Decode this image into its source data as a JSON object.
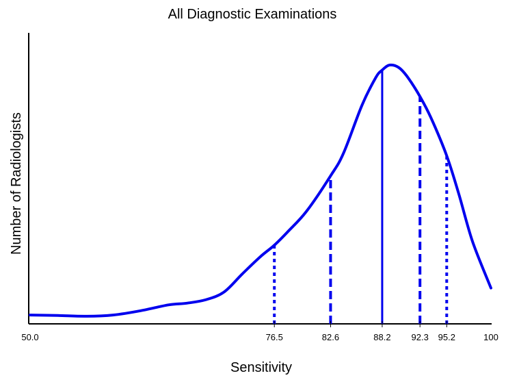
{
  "chart_data": {
    "type": "line",
    "title": "All Diagnostic Examinations",
    "xlabel": "Sensitivity",
    "ylabel": "Number of Radiologists",
    "xlim": [
      50,
      100
    ],
    "ylim": [
      0,
      1
    ],
    "y_ticks_shown": false,
    "grid": false,
    "color": "#0000ee",
    "x_tick_labels": [
      {
        "x": 50,
        "label": "50.0"
      },
      {
        "x": 76.5,
        "label": "76.5"
      },
      {
        "x": 82.6,
        "label": "82.6"
      },
      {
        "x": 88.2,
        "label": "88.2"
      },
      {
        "x": 92.3,
        "label": "92.3"
      },
      {
        "x": 95.2,
        "label": "95.2"
      },
      {
        "x": 100,
        "label": "100"
      }
    ],
    "series": [
      {
        "x": [
          50,
          53,
          56,
          59,
          62,
          65,
          67,
          69,
          71,
          73,
          75,
          76.5,
          78,
          80,
          82.6,
          84,
          86,
          87.5,
          88.2,
          89,
          90,
          91,
          92.3,
          93.5,
          95.2,
          96.5,
          98,
          100
        ],
        "y": [
          0.008,
          0.006,
          0.003,
          0.008,
          0.025,
          0.048,
          0.055,
          0.068,
          0.098,
          0.17,
          0.24,
          0.285,
          0.34,
          0.42,
          0.56,
          0.65,
          0.84,
          0.95,
          0.98,
          1.0,
          0.99,
          0.95,
          0.875,
          0.79,
          0.64,
          0.49,
          0.3,
          0.115
        ]
      }
    ],
    "reference_lines": [
      {
        "x": 76.5,
        "style": "dotted"
      },
      {
        "x": 82.6,
        "style": "dashed"
      },
      {
        "x": 88.2,
        "style": "solid"
      },
      {
        "x": 92.3,
        "style": "dashed"
      },
      {
        "x": 95.2,
        "style": "dotted"
      }
    ]
  }
}
